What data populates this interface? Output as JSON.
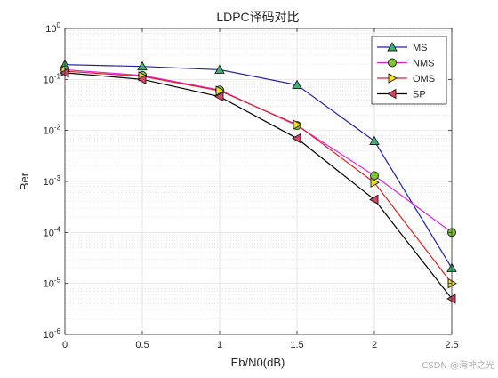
{
  "chart_data": {
    "type": "line",
    "title": "LDPC译码对比",
    "xlabel": "Eb/N0(dB)",
    "ylabel": "Ber",
    "xlim": [
      0,
      2.5
    ],
    "ylim": [
      1e-06,
      1
    ],
    "yscale": "log",
    "grid": true,
    "minor_grid": true,
    "legend_position": "top-right",
    "x_ticks": [
      0,
      0.5,
      1,
      1.5,
      2,
      2.5
    ],
    "x_tick_labels": [
      "0",
      "0.5",
      "1",
      "1.5",
      "2",
      "2.5"
    ],
    "y_tick_labels": [
      {
        "base": "10",
        "exp": "0"
      },
      {
        "base": "10",
        "exp": "-1"
      },
      {
        "base": "10",
        "exp": "-2"
      },
      {
        "base": "10",
        "exp": "-3"
      },
      {
        "base": "10",
        "exp": "-4"
      },
      {
        "base": "10",
        "exp": "-5"
      },
      {
        "base": "10",
        "exp": "-6"
      }
    ],
    "x": [
      0,
      0.5,
      1,
      1.5,
      2,
      2.5
    ],
    "series": [
      {
        "name": "MS",
        "marker": "triangle-up",
        "color": "#1f1fa8",
        "fill": "#3cb371",
        "values": [
          0.195,
          0.18,
          0.155,
          0.078,
          0.0062,
          2e-05
        ]
      },
      {
        "name": "NMS",
        "marker": "circle",
        "color": "#e020e0",
        "fill": "#7ec636",
        "values": [
          0.155,
          0.12,
          0.062,
          0.0125,
          0.0013,
          0.0001
        ]
      },
      {
        "name": "OMS",
        "marker": "triangle-right",
        "color": "#e02020",
        "fill": "#f0e020",
        "values": [
          0.145,
          0.115,
          0.06,
          0.013,
          0.00095,
          1e-05
        ]
      },
      {
        "name": "SP",
        "marker": "triangle-left",
        "color": "#000000",
        "fill": "#d9455f",
        "values": [
          0.135,
          0.1,
          0.046,
          0.007,
          0.00044,
          5e-06
        ]
      }
    ]
  },
  "watermark": "CSDN @海神之光"
}
